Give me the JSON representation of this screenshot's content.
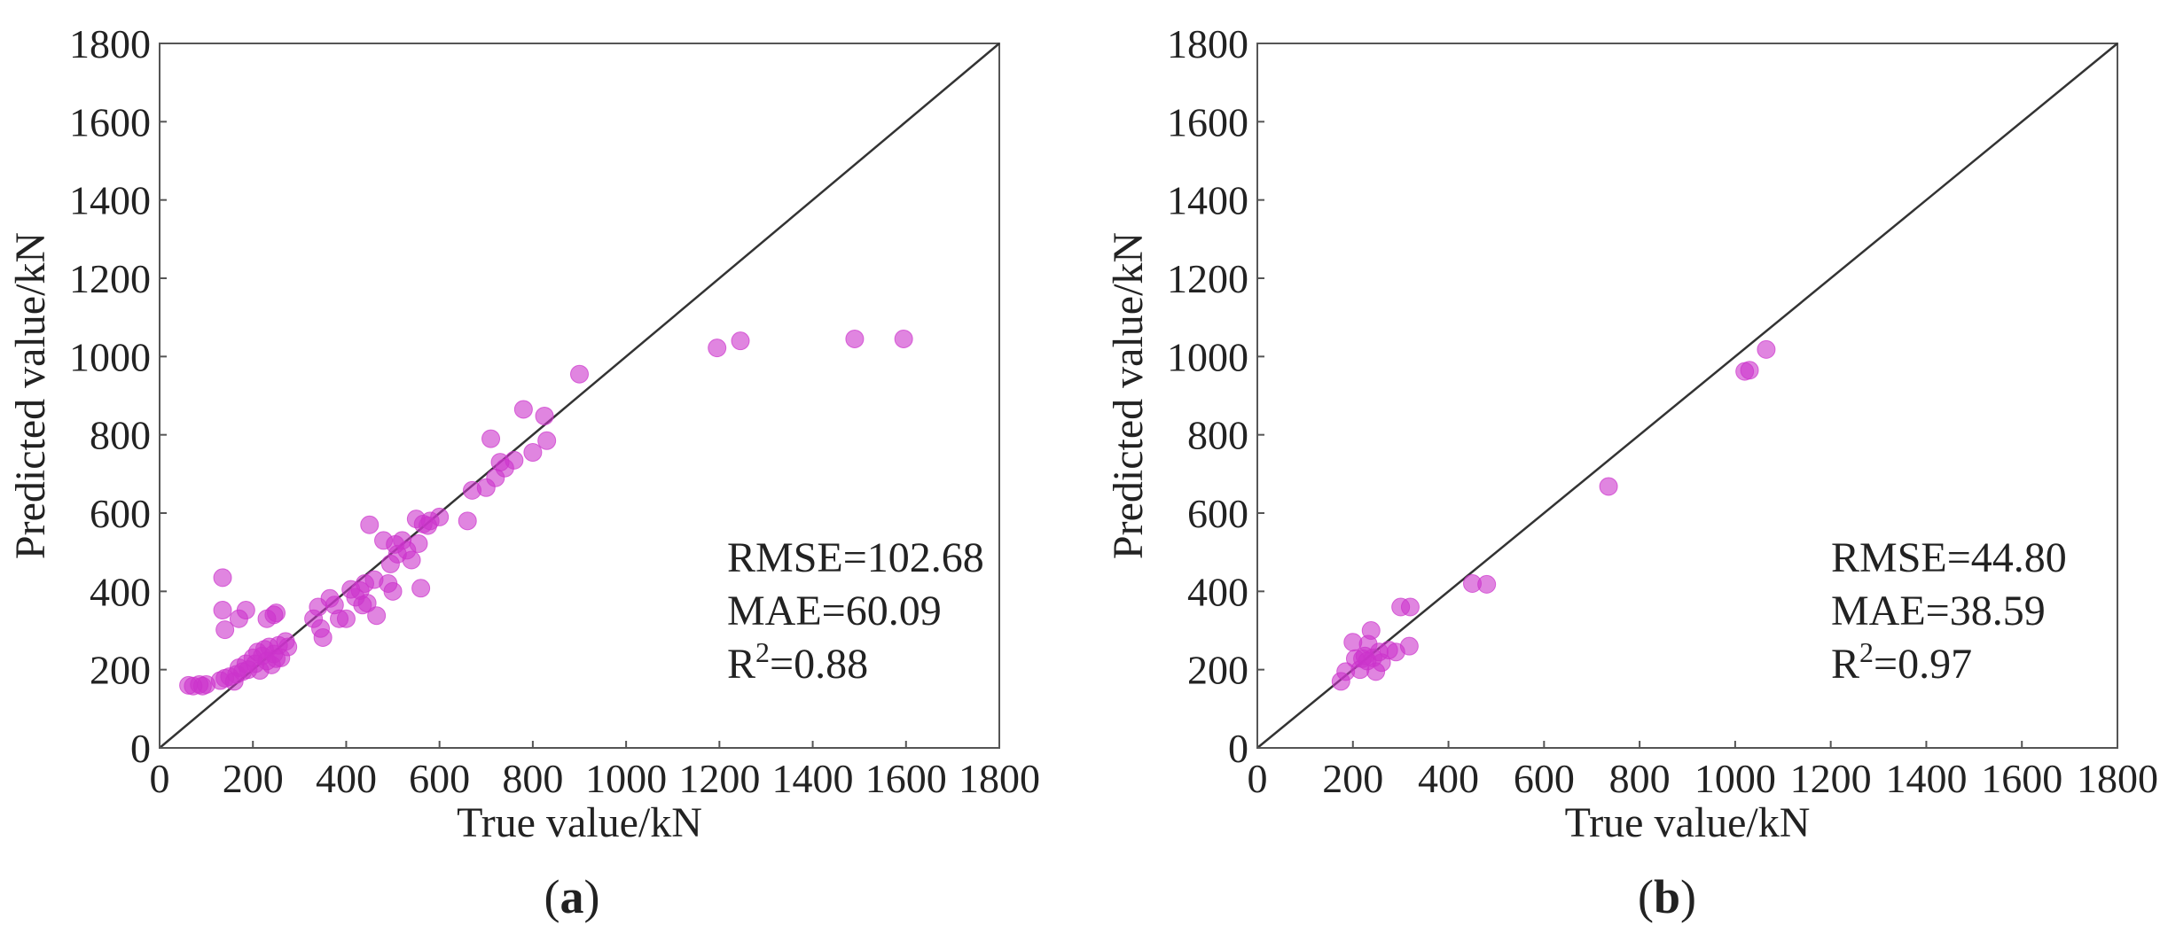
{
  "chart_data": [
    {
      "type": "scatter",
      "panel": "a",
      "caption": "(a)",
      "caption_letter": "a",
      "xlabel": "True value/kN",
      "ylabel": "Predicted value/kN",
      "xlim": [
        0,
        1800
      ],
      "ylim": [
        0,
        1800
      ],
      "xticks": [
        "0",
        "200",
        "400",
        "600",
        "800",
        "1000",
        "1200",
        "1400",
        "1600",
        "1800"
      ],
      "yticks": [
        "0",
        "200",
        "400",
        "600",
        "800",
        "1000",
        "1200",
        "1400",
        "1600",
        "1800"
      ],
      "reference_line": "y = x",
      "marker_color": "#cc33cc",
      "grid": false,
      "metrics": {
        "rmse": "RMSE=102.68",
        "mae": "MAE=60.09",
        "r2_prefix": "R",
        "r2_sup": "2",
        "r2_value": "=0.88"
      },
      "points": [
        [
          62,
          160
        ],
        [
          72,
          158
        ],
        [
          85,
          162
        ],
        [
          92,
          158
        ],
        [
          100,
          162
        ],
        [
          130,
          172
        ],
        [
          140,
          178
        ],
        [
          150,
          182
        ],
        [
          160,
          170
        ],
        [
          165,
          188
        ],
        [
          170,
          205
        ],
        [
          178,
          195
        ],
        [
          185,
          215
        ],
        [
          190,
          200
        ],
        [
          200,
          230
        ],
        [
          205,
          215
        ],
        [
          210,
          245
        ],
        [
          215,
          198
        ],
        [
          220,
          235
        ],
        [
          225,
          252
        ],
        [
          230,
          222
        ],
        [
          235,
          258
        ],
        [
          240,
          212
        ],
        [
          245,
          240
        ],
        [
          250,
          228
        ],
        [
          255,
          262
        ],
        [
          260,
          230
        ],
        [
          270,
          272
        ],
        [
          275,
          258
        ],
        [
          230,
          330
        ],
        [
          245,
          340
        ],
        [
          250,
          345
        ],
        [
          135,
          435
        ],
        [
          135,
          352
        ],
        [
          140,
          302
        ],
        [
          170,
          330
        ],
        [
          185,
          352
        ],
        [
          330,
          330
        ],
        [
          340,
          360
        ],
        [
          345,
          305
        ],
        [
          350,
          282
        ],
        [
          365,
          382
        ],
        [
          375,
          365
        ],
        [
          385,
          330
        ],
        [
          400,
          330
        ],
        [
          410,
          405
        ],
        [
          420,
          385
        ],
        [
          430,
          402
        ],
        [
          435,
          365
        ],
        [
          440,
          420
        ],
        [
          445,
          370
        ],
        [
          450,
          570
        ],
        [
          460,
          430
        ],
        [
          465,
          338
        ],
        [
          480,
          530
        ],
        [
          490,
          420
        ],
        [
          495,
          470
        ],
        [
          500,
          400
        ],
        [
          505,
          520
        ],
        [
          510,
          495
        ],
        [
          520,
          530
        ],
        [
          530,
          505
        ],
        [
          540,
          480
        ],
        [
          550,
          585
        ],
        [
          555,
          522
        ],
        [
          560,
          408
        ],
        [
          565,
          572
        ],
        [
          575,
          568
        ],
        [
          580,
          580
        ],
        [
          600,
          590
        ],
        [
          660,
          580
        ],
        [
          670,
          658
        ],
        [
          700,
          665
        ],
        [
          710,
          790
        ],
        [
          720,
          690
        ],
        [
          730,
          730
        ],
        [
          740,
          715
        ],
        [
          760,
          735
        ],
        [
          780,
          865
        ],
        [
          800,
          755
        ],
        [
          825,
          848
        ],
        [
          830,
          785
        ],
        [
          900,
          955
        ],
        [
          1195,
          1022
        ],
        [
          1245,
          1040
        ],
        [
          1490,
          1045
        ],
        [
          1595,
          1045
        ]
      ]
    },
    {
      "type": "scatter",
      "panel": "b",
      "caption": "(b)",
      "caption_letter": "b",
      "xlabel": "True value/kN",
      "ylabel": "Predicted value/kN",
      "xlim": [
        0,
        1800
      ],
      "ylim": [
        0,
        1800
      ],
      "xticks": [
        "0",
        "200",
        "400",
        "600",
        "800",
        "1000",
        "1200",
        "1400",
        "1600",
        "1800"
      ],
      "yticks": [
        "0",
        "200",
        "400",
        "600",
        "800",
        "1000",
        "1200",
        "1400",
        "1600",
        "1800"
      ],
      "reference_line": "y = x",
      "marker_color": "#cc33cc",
      "grid": false,
      "metrics": {
        "rmse": "RMSE=44.80",
        "mae": "MAE=38.59",
        "r2_prefix": "R",
        "r2_sup": "2",
        "r2_value": "=0.97"
      },
      "points": [
        [
          175,
          170
        ],
        [
          185,
          195
        ],
        [
          200,
          270
        ],
        [
          205,
          228
        ],
        [
          215,
          200
        ],
        [
          220,
          228
        ],
        [
          225,
          235
        ],
        [
          230,
          222
        ],
        [
          232,
          265
        ],
        [
          238,
          300
        ],
        [
          242,
          230
        ],
        [
          248,
          195
        ],
        [
          255,
          245
        ],
        [
          260,
          218
        ],
        [
          275,
          250
        ],
        [
          290,
          245
        ],
        [
          300,
          360
        ],
        [
          320,
          360
        ],
        [
          318,
          260
        ],
        [
          450,
          420
        ],
        [
          480,
          418
        ],
        [
          735,
          668
        ],
        [
          1020,
          962
        ],
        [
          1030,
          965
        ],
        [
          1065,
          1018
        ]
      ]
    }
  ]
}
